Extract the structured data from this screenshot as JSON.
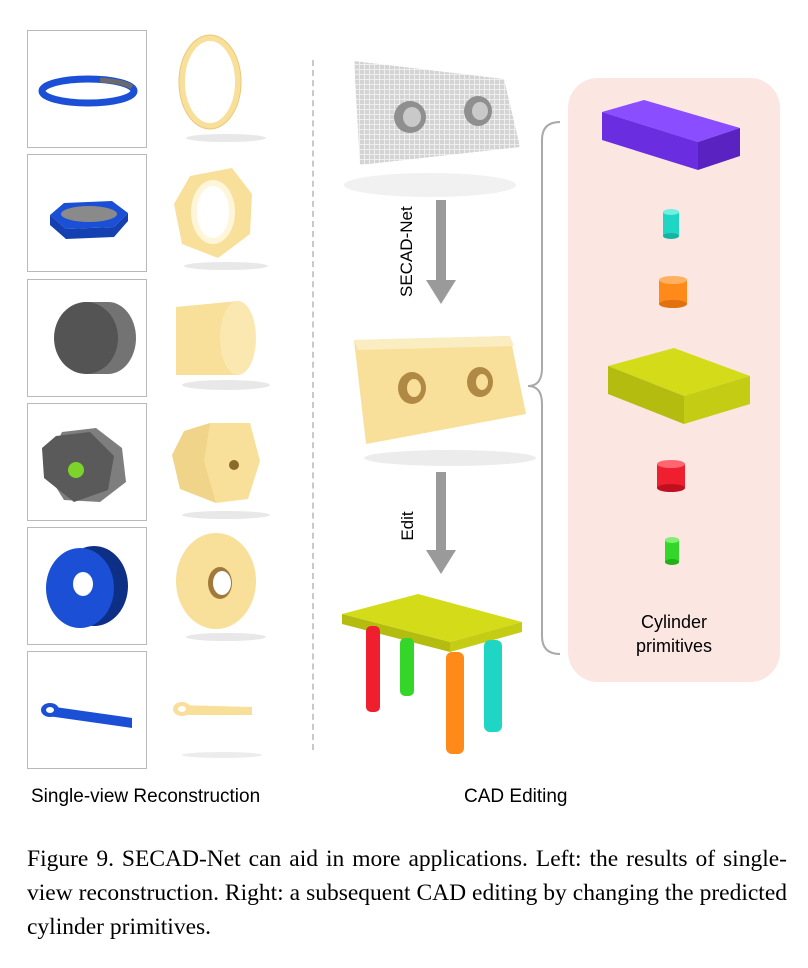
{
  "figure": {
    "left_caption": "Single-view Reconstruction",
    "right_caption": "CAD Editing",
    "arrow1_label": "SECAD-Net",
    "arrow2_label": "Edit",
    "panel_line1": "Cylinder",
    "panel_line2": "primitives",
    "caption_text": "Figure 9.  SECAD-Net can aid in more applications.  Left: the results of single-view reconstruction.  Right: a subsequent CAD editing by changing the predicted cylinder primitives."
  },
  "colors": {
    "input_blue": "#1a4fd6",
    "input_gray": "#5c5c5c",
    "recon_yellow": "#f8e09a",
    "table_yellow": "#d4dc1a",
    "box_purple": "#7a3dff",
    "cyl_cyan": "#1fd6c4",
    "cyl_orange": "#ff8a1a",
    "cyl_red": "#ef1f2f",
    "cyl_green": "#35d62a"
  },
  "rows": [
    {
      "input": "ring-input",
      "output": "ring-reconstruction"
    },
    {
      "input": "hex-nut-input",
      "output": "hex-nut-reconstruction"
    },
    {
      "input": "cylinder-input",
      "output": "cylinder-reconstruction"
    },
    {
      "input": "hex-prism-input",
      "output": "hex-prism-reconstruction"
    },
    {
      "input": "washer-input",
      "output": "washer-reconstruction"
    },
    {
      "input": "bracket-input",
      "output": "bracket-reconstruction"
    }
  ]
}
